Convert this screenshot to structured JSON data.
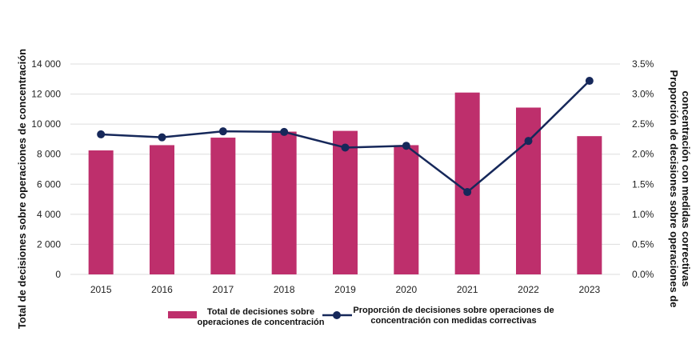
{
  "chart_data": {
    "type": "bar+line",
    "categories": [
      "2015",
      "2016",
      "2017",
      "2018",
      "2019",
      "2020",
      "2021",
      "2022",
      "2023"
    ],
    "series": [
      {
        "name": "Total de decisiones sobre operaciones de concentración",
        "type": "bar",
        "axis": "left",
        "values": [
          8250,
          8600,
          9100,
          9500,
          9550,
          8600,
          12100,
          11100,
          9200
        ]
      },
      {
        "name": "Proporción de decisiones sobre operaciones de concentración con medidas correctivas",
        "type": "line",
        "axis": "right",
        "values": [
          2.33,
          2.28,
          2.38,
          2.37,
          2.11,
          2.14,
          1.37,
          2.22,
          3.22
        ]
      }
    ],
    "y_left": {
      "label": "Total de decisiones sobre operaciones de concentración",
      "ylim": [
        0,
        14000
      ],
      "ticks": [
        "0",
        "2 000",
        "4 000",
        "6 000",
        "8 000",
        "10 000",
        "12 000",
        "14 000"
      ]
    },
    "y_right": {
      "label_lines": [
        "Proporción de decisiones sobre operaciones de",
        "concentración con medidas correctivas"
      ],
      "ylim": [
        0,
        3.5
      ],
      "ticks": [
        "0.0%",
        "0.5%",
        "1.0%",
        "1.5%",
        "2.0%",
        "2.5%",
        "3.0%",
        "3.5%"
      ]
    },
    "legend": {
      "placement": "bottom",
      "bar_label_lines": [
        "Total de decisiones sobre",
        "operaciones de concentración"
      ],
      "line_label_lines": [
        "Proporción de decisiones sobre operaciones de",
        "concentración con medidas correctivas"
      ]
    },
    "grid": "horizontal",
    "colors": {
      "bar": "#be2f6c",
      "line": "#16285a",
      "grid": "#dddddd"
    }
  }
}
